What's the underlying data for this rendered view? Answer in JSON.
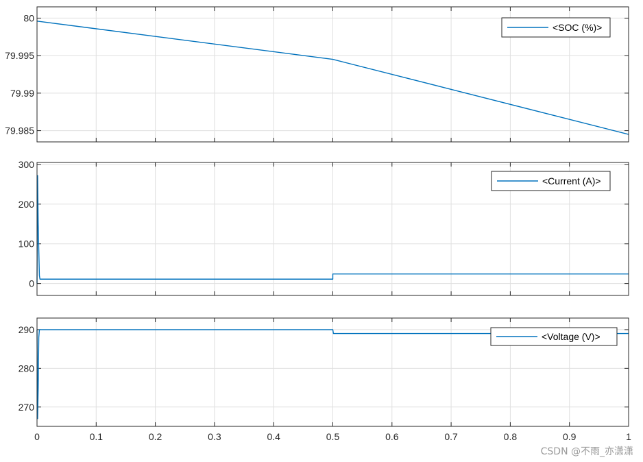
{
  "chart_data": [
    {
      "type": "line",
      "title": "",
      "xlabel": "",
      "ylabel": "",
      "xlim": [
        0,
        1
      ],
      "ylim": [
        79.9835,
        80.0015
      ],
      "yticks": [
        79.985,
        79.99,
        79.995,
        80
      ],
      "ytick_labels": [
        "79.985",
        "79.99",
        "79.995",
        "80"
      ],
      "grid": true,
      "legend_position": "top-right",
      "series": [
        {
          "name": "<SOC (%)>",
          "color": "#0072bd",
          "x": [
            0,
            0.5,
            1
          ],
          "y": [
            79.9996,
            79.9945,
            79.9845
          ]
        }
      ]
    },
    {
      "type": "line",
      "title": "",
      "xlabel": "",
      "ylabel": "",
      "xlim": [
        0,
        1
      ],
      "ylim": [
        -30,
        305
      ],
      "yticks": [
        0,
        100,
        200,
        300
      ],
      "ytick_labels": [
        "0",
        "100",
        "200",
        "300"
      ],
      "grid": true,
      "legend_position": "top-right",
      "series": [
        {
          "name": "<Current (A)>",
          "color": "#0072bd",
          "x": [
            0,
            0.001,
            0.002,
            0.004,
            0.005,
            0.5,
            0.5,
            1
          ],
          "y": [
            0,
            272,
            150,
            20,
            11,
            11,
            24,
            24
          ]
        }
      ]
    },
    {
      "type": "line",
      "title": "",
      "xlabel": "",
      "ylabel": "",
      "xlim": [
        0,
        1
      ],
      "xticks": [
        0,
        0.1,
        0.2,
        0.3,
        0.4,
        0.5,
        0.6,
        0.7,
        0.8,
        0.9,
        1
      ],
      "xtick_labels": [
        "0",
        "0.1",
        "0.2",
        "0.3",
        "0.4",
        "0.5",
        "0.6",
        "0.7",
        "0.8",
        "0.9",
        "1"
      ],
      "ylim": [
        265,
        293
      ],
      "yticks": [
        270,
        280,
        290
      ],
      "ytick_labels": [
        "270",
        "280",
        "290"
      ],
      "grid": true,
      "legend_position": "top-right",
      "series": [
        {
          "name": "<Voltage (V)>",
          "color": "#0072bd",
          "x": [
            0,
            0.001,
            0.002,
            0.003,
            0.004,
            0.5,
            0.501,
            1
          ],
          "y": [
            290,
            267,
            275,
            288,
            290,
            290,
            289,
            289
          ]
        }
      ]
    }
  ],
  "watermark": "CSDN @不雨_亦潇潇"
}
